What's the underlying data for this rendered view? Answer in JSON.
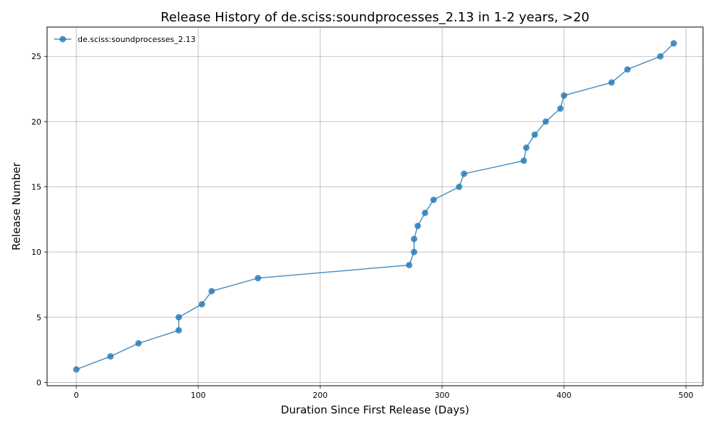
{
  "chart_data": {
    "type": "line",
    "title": "Release History of de.sciss:soundprocesses_2.13 in 1-2 years, >20",
    "xlabel": "Duration Since First Release (Days)",
    "ylabel": "Release Number",
    "xlim": [
      -24,
      514
    ],
    "ylim": [
      -0.25,
      27.25
    ],
    "xticks": [
      0,
      100,
      200,
      300,
      400,
      500
    ],
    "yticks": [
      0,
      5,
      10,
      15,
      20,
      25
    ],
    "grid": true,
    "legend_position": "top-left",
    "series": [
      {
        "name": "de.sciss:soundprocesses_2.13",
        "color": "#1f77b4",
        "marker": "circle",
        "x": [
          0,
          28,
          51,
          84,
          84,
          103,
          111,
          149,
          273,
          277,
          277,
          280,
          286,
          293,
          314,
          318,
          367,
          369,
          376,
          385,
          397,
          400,
          439,
          452,
          479,
          490
        ],
        "y": [
          1,
          2,
          3,
          4,
          5,
          6,
          7,
          8,
          9,
          10,
          11,
          12,
          13,
          14,
          15,
          16,
          17,
          18,
          19,
          20,
          21,
          22,
          23,
          24,
          25,
          26
        ]
      }
    ]
  }
}
